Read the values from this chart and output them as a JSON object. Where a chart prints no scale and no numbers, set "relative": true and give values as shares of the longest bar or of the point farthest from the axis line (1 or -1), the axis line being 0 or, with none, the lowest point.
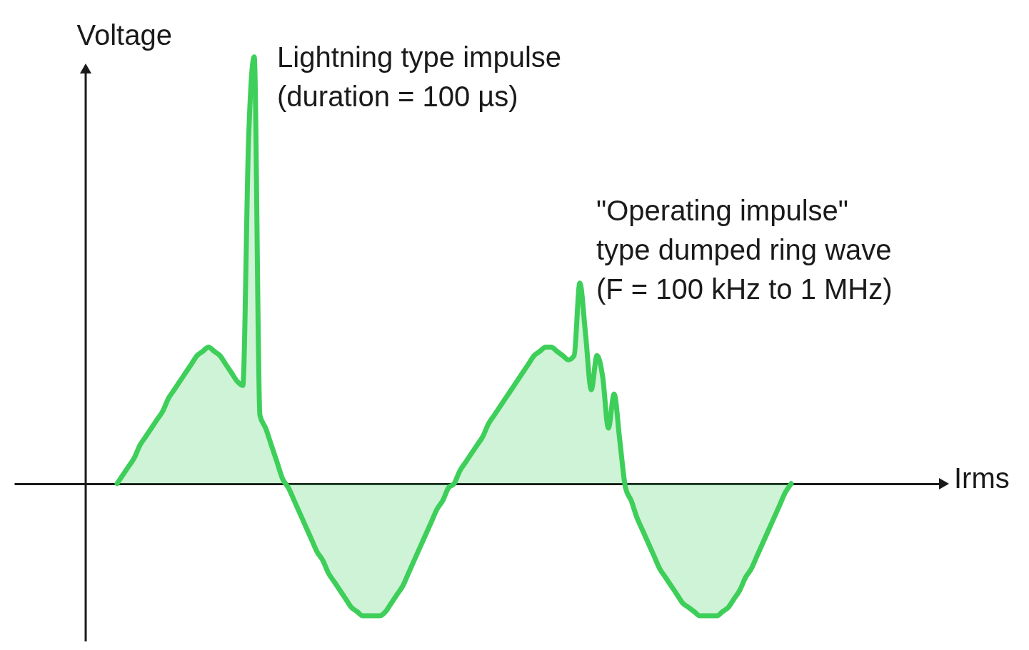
{
  "chart_data": {
    "type": "area",
    "relative": true,
    "ylabel": "Voltage",
    "annotations": [
      "Lightning type impulse\n(duration = 100 µs)",
      "\"Operating impulse\"\ntype dumped ring wave\n(F = 100 kHz to 1 MHz)",
      "Irms"
    ],
    "categories": [
      null,
      null,
      null,
      null,
      null,
      null,
      null,
      null,
      null,
      null,
      null,
      null,
      null,
      null,
      null,
      null,
      null,
      null,
      null,
      null,
      null,
      null,
      null,
      null,
      null,
      null,
      null,
      null,
      null,
      null,
      null,
      null,
      null,
      null,
      null,
      null,
      null,
      null,
      null,
      null,
      null,
      null,
      null,
      null,
      null,
      null,
      null,
      null,
      null,
      null,
      null,
      null,
      null,
      null,
      null,
      null,
      null,
      null,
      null,
      null,
      null,
      null,
      null,
      null,
      null,
      null,
      null,
      null,
      null,
      null,
      null,
      null,
      null,
      null,
      null,
      null,
      null,
      null,
      null,
      null,
      null,
      null,
      null,
      null,
      null,
      null,
      null,
      null,
      null,
      null,
      null,
      null,
      null,
      null,
      null,
      null,
      null,
      null,
      null,
      null,
      null,
      null,
      null,
      null,
      null,
      null,
      null,
      null,
      null,
      null,
      null,
      null,
      null,
      null,
      null,
      null,
      null,
      null,
      null
    ],
    "series": [
      {
        "color": "#3ecf5a",
        "values": [
          0,
          0.02,
          0.04,
          0.06,
          0.09,
          0.11,
          0.13,
          0.15,
          0.17,
          0.2,
          0.22,
          0.24,
          0.26,
          0.28,
          0.3,
          0.31,
          0.32,
          0.31,
          0.3,
          0.28,
          0.26,
          0.24,
          0.23,
          0.8,
          1,
          0.16,
          0.13,
          0.09,
          0.05,
          0.01,
          -0.01,
          -0.04,
          -0.07,
          -0.1,
          -0.13,
          -0.16,
          -0.18,
          -0.21,
          -0.23,
          -0.25,
          -0.27,
          -0.29,
          -0.3,
          -0.31,
          -0.31,
          -0.31,
          -0.31,
          -0.3,
          -0.28,
          -0.26,
          -0.24,
          -0.21,
          -0.18,
          -0.15,
          -0.12,
          -0.09,
          -0.06,
          -0.04,
          -0.01,
          0,
          0.03,
          0.05,
          0.07,
          0.09,
          0.11,
          0.14,
          0.16,
          0.18,
          0.2,
          0.22,
          0.24,
          0.26,
          0.28,
          0.3,
          0.31,
          0.32,
          0.32,
          0.31,
          0.3,
          0.29,
          0.3,
          0.47,
          0.35,
          0.22,
          0.3,
          0.25,
          0.13,
          0.21,
          0.1,
          -0.01,
          -0.04,
          -0.08,
          -0.11,
          -0.14,
          -0.17,
          -0.2,
          -0.22,
          -0.24,
          -0.26,
          -0.28,
          -0.29,
          -0.3,
          -0.31,
          -0.31,
          -0.31,
          -0.31,
          -0.3,
          -0.29,
          -0.27,
          -0.25,
          -0.22,
          -0.2,
          -0.17,
          -0.14,
          -0.11,
          -0.08,
          -0.05,
          -0.02,
          0
        ]
      }
    ]
  }
}
